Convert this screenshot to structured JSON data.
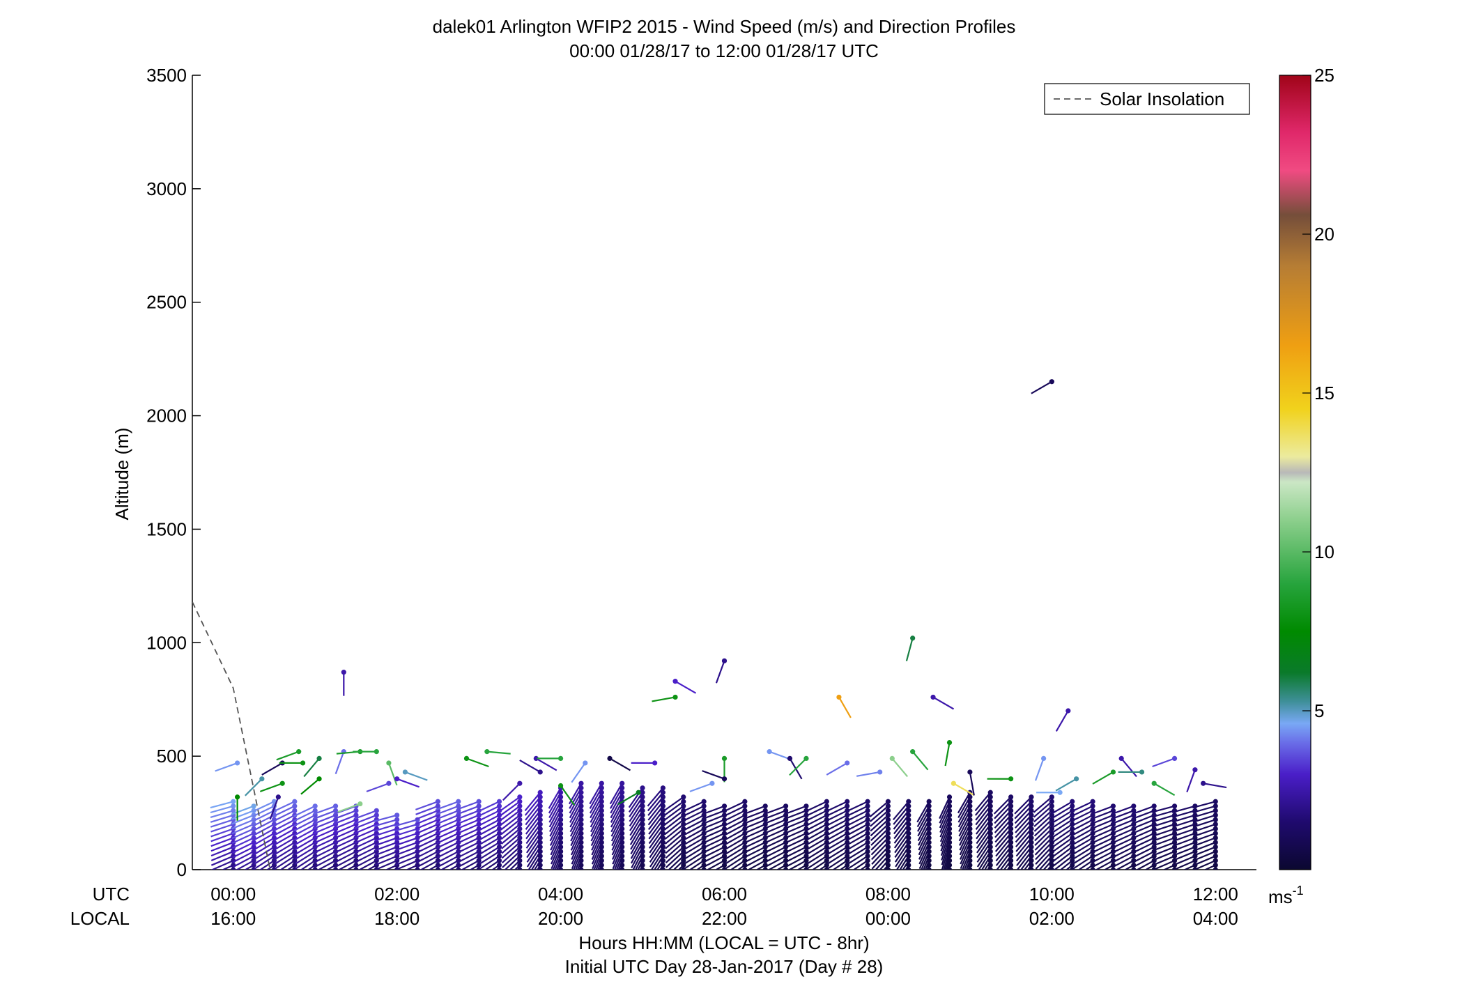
{
  "title": {
    "line1": "dalek01 Arlington WFIP2 2015 - Wind Speed (m/s) and Direction Profiles",
    "line2": "00:00 01/28/17 to 12:00 01/28/17  UTC"
  },
  "axes": {
    "ylabel": "Altitude (m)",
    "xlabel_line1": "Hours HH:MM  (LOCAL = UTC - 8hr)",
    "xlabel_line2": "Initial UTC Day 28-Jan-2017 (Day # 28)",
    "utc_row_label": "UTC",
    "local_row_label": "LOCAL"
  },
  "legend": {
    "entry": "Solar Insolation",
    "placement": "top-right"
  },
  "colorbar": {
    "unit": "ms",
    "unit_exp": "-1",
    "min": 0,
    "max": 25,
    "ticks": [
      {
        "value": 25,
        "label": "25"
      },
      {
        "value": 20,
        "label": "20"
      },
      {
        "value": 15,
        "label": "15"
      },
      {
        "value": 10,
        "label": "10"
      },
      {
        "value": 5,
        "label": "5"
      }
    ],
    "stops": [
      {
        "v": 0,
        "c": "#0b0830"
      },
      {
        "v": 1.5,
        "c": "#1f0a6e"
      },
      {
        "v": 3,
        "c": "#4a1ec8"
      },
      {
        "v": 4,
        "c": "#6a6ee8"
      },
      {
        "v": 4.6,
        "c": "#79a8f5"
      },
      {
        "v": 5.3,
        "c": "#3e8f98"
      },
      {
        "v": 6.2,
        "c": "#0a7a2a"
      },
      {
        "v": 7.5,
        "c": "#008a00"
      },
      {
        "v": 9,
        "c": "#27a43d"
      },
      {
        "v": 11,
        "c": "#8ccf8c"
      },
      {
        "v": 12.2,
        "c": "#cbe7c5"
      },
      {
        "v": 12.5,
        "c": "#b8b8b8"
      },
      {
        "v": 13,
        "c": "#eceb9e"
      },
      {
        "v": 14.5,
        "c": "#f1d21c"
      },
      {
        "v": 16.5,
        "c": "#ef9f12"
      },
      {
        "v": 19,
        "c": "#b67d34"
      },
      {
        "v": 20.6,
        "c": "#754e3a"
      },
      {
        "v": 22,
        "c": "#f04b82"
      },
      {
        "v": 23.2,
        "c": "#e0286a"
      },
      {
        "v": 25,
        "c": "#a00418"
      }
    ]
  },
  "chart_data": {
    "type": "scatter",
    "title": "dalek01 Arlington WFIP2 2015 - Wind Speed (m/s) and Direction Profiles",
    "subtitle": "00:00 01/28/17 to 12:00 01/28/17  UTC",
    "xlabel": "Hours HH:MM  (LOCAL = UTC - 8hr)",
    "ylabel": "Altitude (m)",
    "xlim": [
      -0.5,
      12.5
    ],
    "ylim": [
      0,
      3500
    ],
    "yticks": [
      0,
      500,
      1000,
      1500,
      2000,
      2500,
      3000,
      3500
    ],
    "xticks_utc": [
      {
        "hour": 0,
        "label": "00:00"
      },
      {
        "hour": 2,
        "label": "02:00"
      },
      {
        "hour": 4,
        "label": "04:00"
      },
      {
        "hour": 6,
        "label": "06:00"
      },
      {
        "hour": 8,
        "label": "08:00"
      },
      {
        "hour": 10,
        "label": "10:00"
      },
      {
        "hour": 12,
        "label": "12:00"
      }
    ],
    "xticks_local": [
      "16:00",
      "18:00",
      "20:00",
      "22:00",
      "00:00",
      "02:00",
      "04:00"
    ],
    "solar_insolation_line": [
      [
        -0.5,
        1180
      ],
      [
        0.0,
        800
      ],
      [
        0.45,
        0
      ]
    ],
    "profiles": [
      {
        "t": 0.0,
        "top": 300,
        "spd": 3.8,
        "dir": 250
      },
      {
        "t": 0.25,
        "top": 290,
        "spd": 4.0,
        "dir": 245
      },
      {
        "t": 0.5,
        "top": 300,
        "spd": 3.6,
        "dir": 240
      },
      {
        "t": 0.75,
        "top": 300,
        "spd": 3.3,
        "dir": 240
      },
      {
        "t": 1.0,
        "top": 290,
        "spd": 3.4,
        "dir": 240
      },
      {
        "t": 1.25,
        "top": 280,
        "spd": 3.2,
        "dir": 245
      },
      {
        "t": 1.5,
        "top": 280,
        "spd": 3.0,
        "dir": 245
      },
      {
        "t": 1.75,
        "top": 270,
        "spd": 3.0,
        "dir": 245
      },
      {
        "t": 2.0,
        "top": 240,
        "spd": 3.1,
        "dir": 250
      },
      {
        "t": 2.25,
        "top": 230,
        "spd": 3.1,
        "dir": 250
      },
      {
        "t": 2.5,
        "top": 300,
        "spd": 3.0,
        "dir": 245
      },
      {
        "t": 2.75,
        "top": 300,
        "spd": 3.2,
        "dir": 245
      },
      {
        "t": 3.0,
        "top": 300,
        "spd": 3.0,
        "dir": 245
      },
      {
        "t": 3.25,
        "top": 300,
        "spd": 2.8,
        "dir": 240
      },
      {
        "t": 3.5,
        "top": 330,
        "spd": 2.6,
        "dir": 230
      },
      {
        "t": 3.75,
        "top": 350,
        "spd": 2.4,
        "dir": 215
      },
      {
        "t": 4.0,
        "top": 360,
        "spd": 2.2,
        "dir": 205
      },
      {
        "t": 4.25,
        "top": 380,
        "spd": 2.0,
        "dir": 205
      },
      {
        "t": 4.5,
        "top": 380,
        "spd": 2.0,
        "dir": 205
      },
      {
        "t": 4.75,
        "top": 380,
        "spd": 1.9,
        "dir": 205
      },
      {
        "t": 5.0,
        "top": 370,
        "spd": 1.7,
        "dir": 210
      },
      {
        "t": 5.25,
        "top": 360,
        "spd": 1.5,
        "dir": 215
      },
      {
        "t": 5.5,
        "top": 330,
        "spd": 1.3,
        "dir": 230
      },
      {
        "t": 5.75,
        "top": 300,
        "spd": 1.2,
        "dir": 240
      },
      {
        "t": 6.0,
        "top": 290,
        "spd": 1.1,
        "dir": 245
      },
      {
        "t": 6.25,
        "top": 300,
        "spd": 1.1,
        "dir": 240
      },
      {
        "t": 6.5,
        "top": 290,
        "spd": 1.0,
        "dir": 245
      },
      {
        "t": 6.75,
        "top": 290,
        "spd": 1.0,
        "dir": 245
      },
      {
        "t": 7.0,
        "top": 290,
        "spd": 1.0,
        "dir": 245
      },
      {
        "t": 7.25,
        "top": 300,
        "spd": 1.1,
        "dir": 240
      },
      {
        "t": 7.5,
        "top": 300,
        "spd": 1.2,
        "dir": 240
      },
      {
        "t": 7.75,
        "top": 300,
        "spd": 1.2,
        "dir": 240
      },
      {
        "t": 8.0,
        "top": 300,
        "spd": 1.0,
        "dir": 225
      },
      {
        "t": 8.25,
        "top": 300,
        "spd": 1.0,
        "dir": 215
      },
      {
        "t": 8.5,
        "top": 310,
        "spd": 0.9,
        "dir": 205
      },
      {
        "t": 8.75,
        "top": 320,
        "spd": 0.9,
        "dir": 200
      },
      {
        "t": 9.0,
        "top": 340,
        "spd": 0.9,
        "dir": 205
      },
      {
        "t": 9.25,
        "top": 350,
        "spd": 1.0,
        "dir": 215
      },
      {
        "t": 9.5,
        "top": 330,
        "spd": 1.1,
        "dir": 220
      },
      {
        "t": 9.75,
        "top": 330,
        "spd": 1.2,
        "dir": 220
      },
      {
        "t": 10.0,
        "top": 330,
        "spd": 1.3,
        "dir": 225
      },
      {
        "t": 10.25,
        "top": 310,
        "spd": 1.4,
        "dir": 235
      },
      {
        "t": 10.5,
        "top": 300,
        "spd": 1.4,
        "dir": 240
      },
      {
        "t": 10.75,
        "top": 290,
        "spd": 1.3,
        "dir": 245
      },
      {
        "t": 11.0,
        "top": 280,
        "spd": 1.3,
        "dir": 245
      },
      {
        "t": 11.25,
        "top": 280,
        "spd": 1.2,
        "dir": 245
      },
      {
        "t": 11.5,
        "top": 280,
        "spd": 1.1,
        "dir": 250
      },
      {
        "t": 11.75,
        "top": 290,
        "spd": 1.1,
        "dir": 250
      },
      {
        "t": 12.0,
        "top": 300,
        "spd": 1.0,
        "dir": 250
      }
    ],
    "isolated_barbs": [
      {
        "t": 0.05,
        "alt": 470,
        "spd": 4.4,
        "dir": 250
      },
      {
        "t": 0.05,
        "alt": 320,
        "spd": 7.5,
        "dir": 180
      },
      {
        "t": 0.35,
        "alt": 400,
        "spd": 5.2,
        "dir": 225
      },
      {
        "t": 0.55,
        "alt": 320,
        "spd": 2.0,
        "dir": 200
      },
      {
        "t": 0.6,
        "alt": 380,
        "spd": 8.0,
        "dir": 250
      },
      {
        "t": 0.6,
        "alt": 470,
        "spd": 1.0,
        "dir": 240
      },
      {
        "t": 0.8,
        "alt": 520,
        "spd": 8.5,
        "dir": 250
      },
      {
        "t": 0.85,
        "alt": 470,
        "spd": 8.0,
        "dir": 270
      },
      {
        "t": 1.05,
        "alt": 490,
        "spd": 6.0,
        "dir": 220
      },
      {
        "t": 1.05,
        "alt": 400,
        "spd": 7.5,
        "dir": 230
      },
      {
        "t": 1.35,
        "alt": 870,
        "spd": 2.5,
        "dir": 180
      },
      {
        "t": 1.35,
        "alt": 520,
        "spd": 4.0,
        "dir": 200
      },
      {
        "t": 1.55,
        "alt": 520,
        "spd": 8.5,
        "dir": 265
      },
      {
        "t": 1.55,
        "alt": 290,
        "spd": 11.0,
        "dir": 250
      },
      {
        "t": 1.75,
        "alt": 520,
        "spd": 9.0,
        "dir": 270
      },
      {
        "t": 1.9,
        "alt": 470,
        "spd": 10.0,
        "dir": 160
      },
      {
        "t": 1.9,
        "alt": 380,
        "spd": 3.5,
        "dir": 250
      },
      {
        "t": 2.0,
        "alt": 400,
        "spd": 3.0,
        "dir": 110
      },
      {
        "t": 2.1,
        "alt": 430,
        "spd": 5.0,
        "dir": 110
      },
      {
        "t": 2.85,
        "alt": 490,
        "spd": 8.0,
        "dir": 110
      },
      {
        "t": 3.1,
        "alt": 520,
        "spd": 9.0,
        "dir": 95
      },
      {
        "t": 3.5,
        "alt": 380,
        "spd": 2.5,
        "dir": 225
      },
      {
        "t": 3.7,
        "alt": 490,
        "spd": 2.5,
        "dir": 120
      },
      {
        "t": 3.75,
        "alt": 430,
        "spd": 2.0,
        "dir": 300
      },
      {
        "t": 4.0,
        "alt": 490,
        "spd": 9.0,
        "dir": 270
      },
      {
        "t": 4.0,
        "alt": 370,
        "spd": 8.0,
        "dir": 145
      },
      {
        "t": 4.3,
        "alt": 470,
        "spd": 4.4,
        "dir": 215
      },
      {
        "t": 4.6,
        "alt": 490,
        "spd": 0.6,
        "dir": 120
      },
      {
        "t": 4.95,
        "alt": 340,
        "spd": 6.5,
        "dir": 240
      },
      {
        "t": 5.15,
        "alt": 470,
        "spd": 3.0,
        "dir": 270
      },
      {
        "t": 5.4,
        "alt": 830,
        "spd": 3.0,
        "dir": 120
      },
      {
        "t": 5.4,
        "alt": 760,
        "spd": 8.0,
        "dir": 260
      },
      {
        "t": 5.85,
        "alt": 380,
        "spd": 4.4,
        "dir": 250
      },
      {
        "t": 6.0,
        "alt": 920,
        "spd": 2.0,
        "dir": 200
      },
      {
        "t": 6.0,
        "alt": 490,
        "spd": 8.5,
        "dir": 180
      },
      {
        "t": 6.0,
        "alt": 400,
        "spd": 1.0,
        "dir": 290
      },
      {
        "t": 6.55,
        "alt": 520,
        "spd": 4.4,
        "dir": 110
      },
      {
        "t": 6.8,
        "alt": 490,
        "spd": 1.5,
        "dir": 150
      },
      {
        "t": 7.0,
        "alt": 490,
        "spd": 9.0,
        "dir": 225
      },
      {
        "t": 7.4,
        "alt": 760,
        "spd": 16.5,
        "dir": 150
      },
      {
        "t": 7.5,
        "alt": 470,
        "spd": 4.0,
        "dir": 240
      },
      {
        "t": 7.9,
        "alt": 430,
        "spd": 4.2,
        "dir": 260
      },
      {
        "t": 8.05,
        "alt": 490,
        "spd": 11.0,
        "dir": 140
      },
      {
        "t": 8.3,
        "alt": 1020,
        "spd": 6.0,
        "dir": 195
      },
      {
        "t": 8.3,
        "alt": 520,
        "spd": 9.0,
        "dir": 140
      },
      {
        "t": 8.55,
        "alt": 760,
        "spd": 2.5,
        "dir": 120
      },
      {
        "t": 8.75,
        "alt": 560,
        "spd": 8.0,
        "dir": 190
      },
      {
        "t": 8.8,
        "alt": 380,
        "spd": 13.8,
        "dir": 120
      },
      {
        "t": 9.0,
        "alt": 430,
        "spd": 1.0,
        "dir": 170
      },
      {
        "t": 9.5,
        "alt": 400,
        "spd": 8.0,
        "dir": 270
      },
      {
        "t": 9.9,
        "alt": 490,
        "spd": 4.4,
        "dir": 200
      },
      {
        "t": 10.0,
        "alt": 2150,
        "spd": 1.0,
        "dir": 240
      },
      {
        "t": 10.1,
        "alt": 340,
        "spd": 4.6,
        "dir": 270
      },
      {
        "t": 10.2,
        "alt": 700,
        "spd": 2.5,
        "dir": 210
      },
      {
        "t": 10.3,
        "alt": 400,
        "spd": 5.2,
        "dir": 240
      },
      {
        "t": 10.75,
        "alt": 430,
        "spd": 8.5,
        "dir": 240
      },
      {
        "t": 10.85,
        "alt": 490,
        "spd": 2.5,
        "dir": 140
      },
      {
        "t": 11.1,
        "alt": 430,
        "spd": 5.5,
        "dir": 270
      },
      {
        "t": 11.25,
        "alt": 380,
        "spd": 9.0,
        "dir": 120
      },
      {
        "t": 11.5,
        "alt": 490,
        "spd": 3.5,
        "dir": 250
      },
      {
        "t": 11.75,
        "alt": 440,
        "spd": 2.5,
        "dir": 200
      },
      {
        "t": 11.85,
        "alt": 380,
        "spd": 2.0,
        "dir": 100
      }
    ]
  }
}
